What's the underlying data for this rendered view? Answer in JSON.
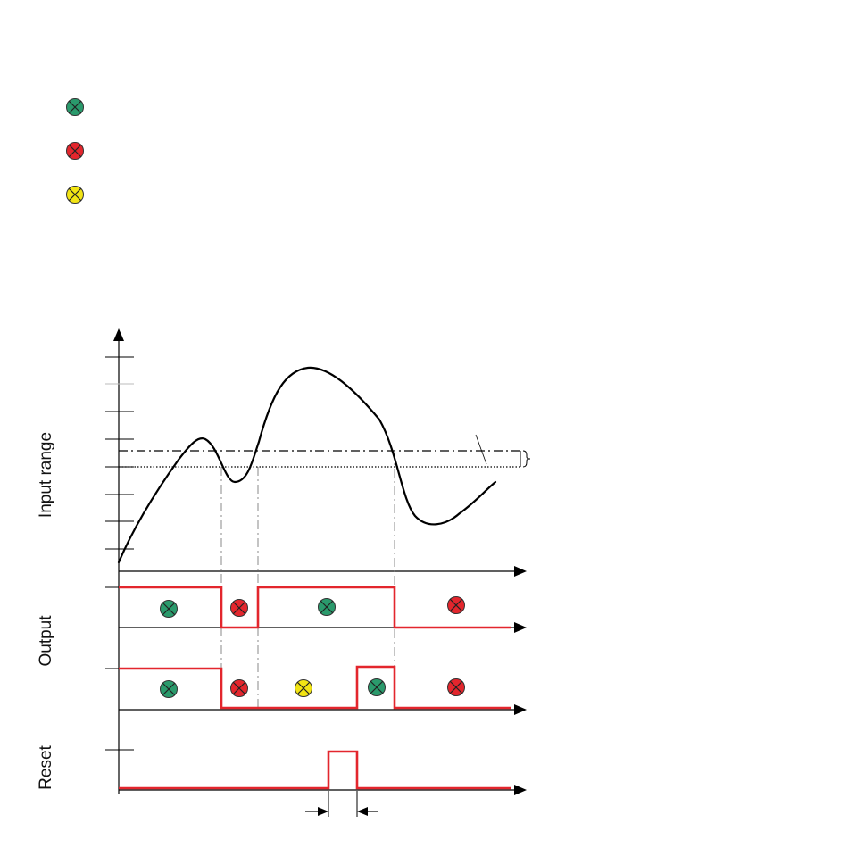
{
  "labels": {
    "input_range": "Input range",
    "output": "Output",
    "reset": "Reset"
  },
  "colors": {
    "signal": "#e3262d",
    "curve": "#000000",
    "guide": "#888888",
    "lamp_green": "#2a9a6c",
    "lamp_red": "#e3262d",
    "lamp_yellow": "#f2e414"
  },
  "legend": [
    {
      "icon": "green-lamp-icon",
      "label": ""
    },
    {
      "icon": "red-lamp-icon",
      "label": ""
    },
    {
      "icon": "yellow-lamp-icon",
      "label": ""
    }
  ],
  "output1_states": [
    "green-lamp-icon",
    "red-lamp-icon",
    "green-lamp-icon",
    "red-lamp-icon"
  ],
  "output2_states": [
    "green-lamp-icon",
    "red-lamp-icon",
    "yellow-lamp-icon",
    "green-lamp-icon",
    "red-lamp-icon"
  ]
}
